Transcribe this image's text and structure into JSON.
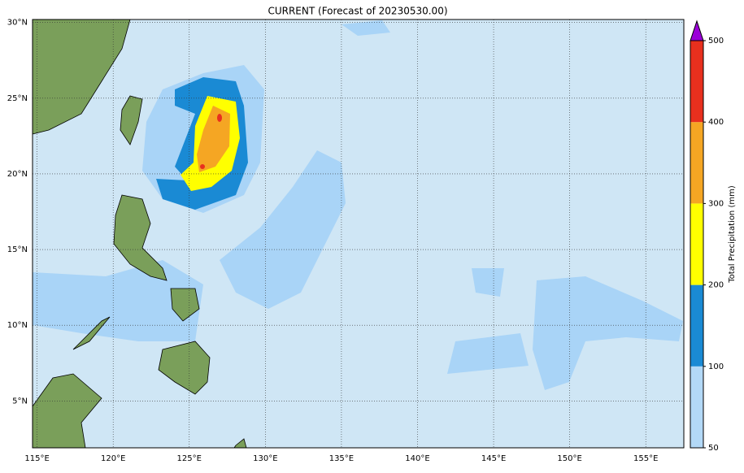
{
  "title": "CURRENT (Forecast of 20230530.00)",
  "map": {
    "xlim": [
      114.7,
      157.5
    ],
    "ylim": [
      1.9,
      30.2
    ],
    "xticks": [
      {
        "value": 115,
        "label": "115°E"
      },
      {
        "value": 120,
        "label": "120°E"
      },
      {
        "value": 125,
        "label": "125°E"
      },
      {
        "value": 130,
        "label": "130°E"
      },
      {
        "value": 135,
        "label": "135°E"
      },
      {
        "value": 140,
        "label": "140°E"
      },
      {
        "value": 145,
        "label": "145°E"
      },
      {
        "value": 150,
        "label": "150°E"
      },
      {
        "value": 155,
        "label": "155°E"
      }
    ],
    "yticks": [
      {
        "value": 5,
        "label": "5°N"
      },
      {
        "value": 10,
        "label": "10°N"
      },
      {
        "value": 15,
        "label": "15°N"
      },
      {
        "value": 20,
        "label": "20°N"
      },
      {
        "value": 25,
        "label": "25°N"
      },
      {
        "value": 30,
        "label": "30°N"
      }
    ],
    "grid": true
  },
  "colorbar": {
    "label": "Total Precipitation (mm)",
    "ticks": [
      50,
      100,
      200,
      300,
      400,
      500
    ],
    "colors": [
      "#b3d9f7",
      "#1a8ad4",
      "#ffff00",
      "#f5a623",
      "#e8301e"
    ],
    "extend_color": "#9b00d9"
  }
}
